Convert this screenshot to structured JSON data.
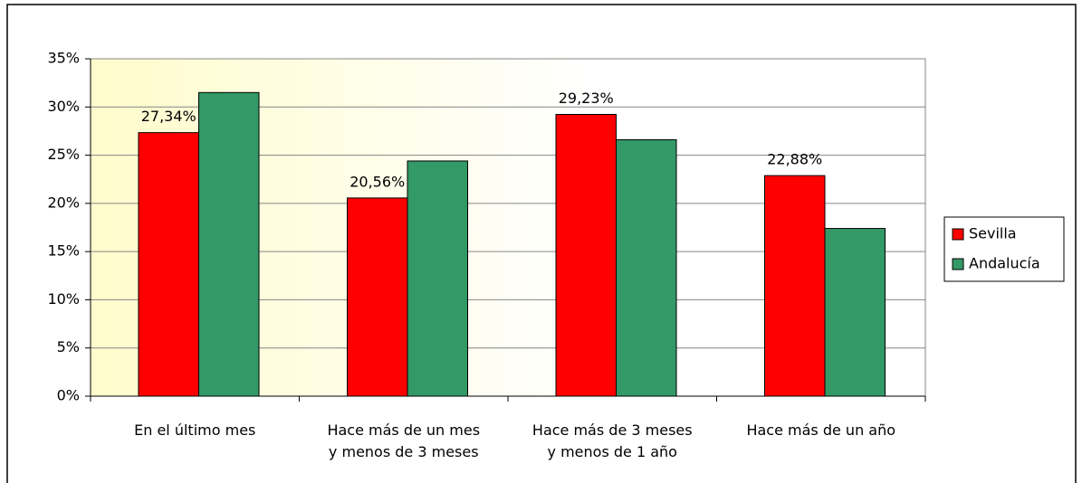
{
  "chart_data": {
    "type": "bar",
    "categories": [
      [
        "En el último mes"
      ],
      [
        "Hace más de un mes",
        "y menos de 3 meses"
      ],
      [
        "Hace más de 3 meses",
        "y menos de 1 año"
      ],
      [
        "Hace más de un año"
      ]
    ],
    "series": [
      {
        "name": "Sevilla",
        "color": "#ff0000",
        "values": [
          27.34,
          20.56,
          29.23,
          22.88
        ],
        "value_labels": [
          "27,34%",
          "20,56%",
          "29,23%",
          "22,88%"
        ]
      },
      {
        "name": "Andalucía",
        "color": "#339966",
        "values": [
          31.5,
          24.4,
          26.6,
          17.4
        ]
      }
    ],
    "ylim": [
      0,
      35
    ],
    "yticks": [
      {
        "value": 0,
        "label": "0%"
      },
      {
        "value": 5,
        "label": "5%"
      },
      {
        "value": 10,
        "label": "10%"
      },
      {
        "value": 15,
        "label": "15%"
      },
      {
        "value": 20,
        "label": "20%"
      },
      {
        "value": 25,
        "label": "25%"
      },
      {
        "value": 30,
        "label": "30%"
      },
      {
        "value": 35,
        "label": "35%"
      }
    ],
    "grid": true,
    "legend": "right"
  }
}
